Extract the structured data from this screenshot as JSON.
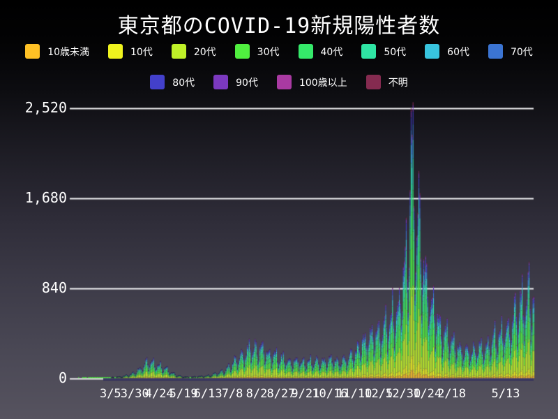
{
  "title": "東京都のCOVID-19新規陽性者数",
  "colors": {
    "background_top": "#000000",
    "background_bottom": "#56535F",
    "grid": "#F2F2F4",
    "text": "#FFFFFF",
    "baseline_shadow": "#2D2A5C"
  },
  "chart_data": {
    "type": "bar",
    "subtype": "stacked-daily-bars",
    "title": "東京都のCOVID-19新規陽性者数",
    "xlabel": "",
    "ylabel": "",
    "grid": "horizontal-only",
    "legend_position": "top",
    "ylim": [
      0,
      2520
    ],
    "y_axis": {
      "ticks": [
        {
          "value": 0,
          "label": "0"
        },
        {
          "value": 840,
          "label": "840"
        },
        {
          "value": 1680,
          "label": "1,680"
        },
        {
          "value": 2520,
          "label": "2,520"
        }
      ]
    },
    "x_axis": {
      "start_date": "2020-01-24",
      "end_date": "2021-05-13",
      "ticks": [
        {
          "date": "2020-03-05",
          "label": "3/5"
        },
        {
          "date": "2020-03-30",
          "label": "3/30"
        },
        {
          "date": "2020-04-24",
          "label": "4/24"
        },
        {
          "date": "2020-05-19",
          "label": "5/19"
        },
        {
          "date": "2020-06-13",
          "label": "6/13"
        },
        {
          "date": "2020-07-08",
          "label": "7/8"
        },
        {
          "date": "2020-08-02",
          "label": "8/2"
        },
        {
          "date": "2020-08-27",
          "label": "8/27"
        },
        {
          "date": "2020-09-21",
          "label": "9/21"
        },
        {
          "date": "2020-10-16",
          "label": "10/16"
        },
        {
          "date": "2020-11-10",
          "label": "11/10"
        },
        {
          "date": "2020-12-05",
          "label": "12/5"
        },
        {
          "date": "2020-12-30",
          "label": "12/30"
        },
        {
          "date": "2021-01-24",
          "label": "1/24"
        },
        {
          "date": "2021-02-18",
          "label": "2/18"
        },
        {
          "date": "2021-05-13",
          "label": "5/13"
        }
      ]
    },
    "series": [
      {
        "label": "10歳未満",
        "color": "#FFC125",
        "share": 0.03,
        "legend_row": 0
      },
      {
        "label": "10代",
        "color": "#EFF31E",
        "share": 0.052,
        "legend_row": 0
      },
      {
        "label": "20代",
        "color": "#BFF128",
        "share": 0.255,
        "legend_row": 0
      },
      {
        "label": "30代",
        "color": "#50EF3F",
        "share": 0.195,
        "legend_row": 0
      },
      {
        "label": "40代",
        "color": "#35E96A",
        "share": 0.15,
        "legend_row": 0
      },
      {
        "label": "50代",
        "color": "#2FE5A4",
        "share": 0.115,
        "legend_row": 0
      },
      {
        "label": "60代",
        "color": "#38C4DE",
        "share": 0.068,
        "legend_row": 0
      },
      {
        "label": "70代",
        "color": "#3B74D2",
        "share": 0.055,
        "legend_row": 0
      },
      {
        "label": "80代",
        "color": "#4340CB",
        "share": 0.045,
        "legend_row": 1
      },
      {
        "label": "90代",
        "color": "#7B39BF",
        "share": 0.022,
        "legend_row": 1
      },
      {
        "label": "100歳以上",
        "color": "#A93AA2",
        "share": 0.004,
        "legend_row": 1
      },
      {
        "label": "不明",
        "color": "#852B50",
        "share": 0.009,
        "legend_row": 1
      }
    ],
    "daily_total_envelope": [
      [
        "2020-01-24",
        0
      ],
      [
        "2020-02-12",
        1
      ],
      [
        "2020-02-26",
        4
      ],
      [
        "2020-03-05",
        7
      ],
      [
        "2020-03-14",
        14
      ],
      [
        "2020-03-22",
        28
      ],
      [
        "2020-03-29",
        52
      ],
      [
        "2020-04-04",
        90
      ],
      [
        "2020-04-10",
        140
      ],
      [
        "2020-04-17",
        155
      ],
      [
        "2020-04-24",
        125
      ],
      [
        "2020-05-01",
        85
      ],
      [
        "2020-05-09",
        40
      ],
      [
        "2020-05-17",
        16
      ],
      [
        "2020-05-25",
        11
      ],
      [
        "2020-06-02",
        16
      ],
      [
        "2020-06-12",
        24
      ],
      [
        "2020-06-20",
        42
      ],
      [
        "2020-06-28",
        70
      ],
      [
        "2020-07-05",
        120
      ],
      [
        "2020-07-12",
        180
      ],
      [
        "2020-07-20",
        250
      ],
      [
        "2020-07-28",
        300
      ],
      [
        "2020-08-04",
        290
      ],
      [
        "2020-08-12",
        250
      ],
      [
        "2020-08-20",
        215
      ],
      [
        "2020-08-28",
        185
      ],
      [
        "2020-09-05",
        160
      ],
      [
        "2020-09-15",
        165
      ],
      [
        "2020-09-25",
        155
      ],
      [
        "2020-10-05",
        165
      ],
      [
        "2020-10-15",
        175
      ],
      [
        "2020-10-25",
        160
      ],
      [
        "2020-11-02",
        175
      ],
      [
        "2020-11-10",
        245
      ],
      [
        "2020-11-18",
        350
      ],
      [
        "2020-11-26",
        420
      ],
      [
        "2020-12-04",
        410
      ],
      [
        "2020-12-11",
        510
      ],
      [
        "2020-12-18",
        590
      ],
      [
        "2020-12-25",
        700
      ],
      [
        "2020-12-31",
        1050
      ],
      [
        "2021-01-04",
        1250
      ],
      [
        "2021-01-07",
        1950
      ],
      [
        "2021-01-10",
        1750
      ],
      [
        "2021-01-13",
        1550
      ],
      [
        "2021-01-16",
        1500
      ],
      [
        "2021-01-20",
        1100
      ],
      [
        "2021-01-26",
        850
      ],
      [
        "2021-02-02",
        600
      ],
      [
        "2021-02-09",
        450
      ],
      [
        "2021-02-16",
        370
      ],
      [
        "2021-02-23",
        300
      ],
      [
        "2021-03-03",
        255
      ],
      [
        "2021-03-12",
        270
      ],
      [
        "2021-03-21",
        300
      ],
      [
        "2021-03-30",
        350
      ],
      [
        "2021-04-08",
        430
      ],
      [
        "2021-04-16",
        500
      ],
      [
        "2021-04-24",
        600
      ],
      [
        "2021-05-01",
        720
      ],
      [
        "2021-05-07",
        780
      ],
      [
        "2021-05-13",
        800
      ]
    ],
    "weekday_factors": [
      0.9,
      0.52,
      0.7,
      0.96,
      1.1,
      1.18,
      1.28
    ],
    "peak": {
      "date": "2021-01-07",
      "value": 2520
    },
    "noise_seed": 11
  }
}
